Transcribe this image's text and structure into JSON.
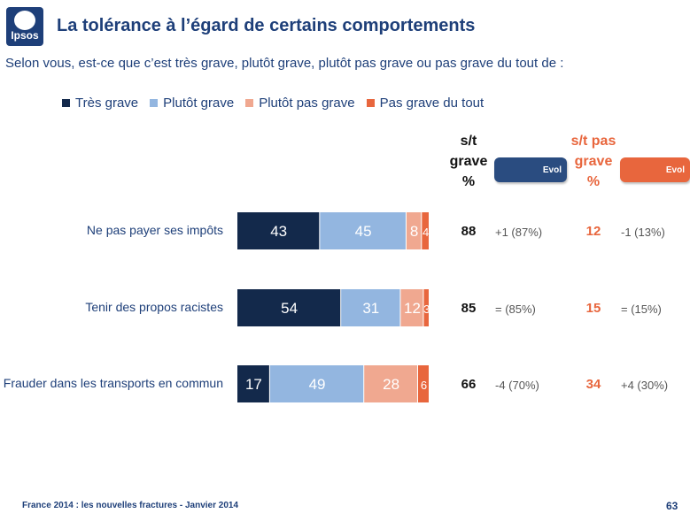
{
  "brand": {
    "logo_text": "Ipsos"
  },
  "title": "La tolérance à l’égard de certains comportements",
  "subtitle": "Selon vous, est-ce que c’est très grave, plutôt grave, plutôt pas grave ou pas grave du tout de :",
  "colors": {
    "tres_grave": "#13294b",
    "plutot_grave": "#93b6e0",
    "plutot_pas_grave": "#f0a890",
    "pas_grave_du_tout": "#e8663d",
    "navy": "#1e3f79",
    "orange": "#e8663d",
    "pill_blue": "#2a4c80"
  },
  "columns": {
    "grave_header": [
      "s/t",
      "grave",
      "%"
    ],
    "pas_grave_header": [
      "s/t pas",
      "grave",
      "%"
    ],
    "evo_label_1": "Evol",
    "evo_label_2": "Evol"
  },
  "chart_data": {
    "type": "bar",
    "orientation": "horizontal",
    "stacked": true,
    "categories": [
      "Ne pas payer ses impôts",
      "Tenir des propos racistes",
      "Frauder dans les transports en commun"
    ],
    "series": [
      {
        "name": "Très grave",
        "values": [
          43,
          54,
          17
        ]
      },
      {
        "name": "Plutôt grave",
        "values": [
          45,
          31,
          49
        ]
      },
      {
        "name": "Plutôt pas grave",
        "values": [
          8,
          12,
          28
        ]
      },
      {
        "name": "Pas grave du tout",
        "values": [
          4,
          3,
          6
        ]
      }
    ],
    "legend_position": "top",
    "xlim": [
      0,
      100
    ],
    "subtotal_grave": [
      88,
      85,
      66
    ],
    "subtotal_pas_grave": [
      12,
      15,
      34
    ],
    "evolution_grave": [
      "+1 (87%)",
      "= (85%)",
      "-4 (70%)"
    ],
    "evolution_pas_grave": [
      "-1 (13%)",
      "= (15%)",
      "+4 (30%)"
    ]
  },
  "footer": "France 2014 : les nouvelles fractures - Janvier 2014",
  "page_number": "63"
}
